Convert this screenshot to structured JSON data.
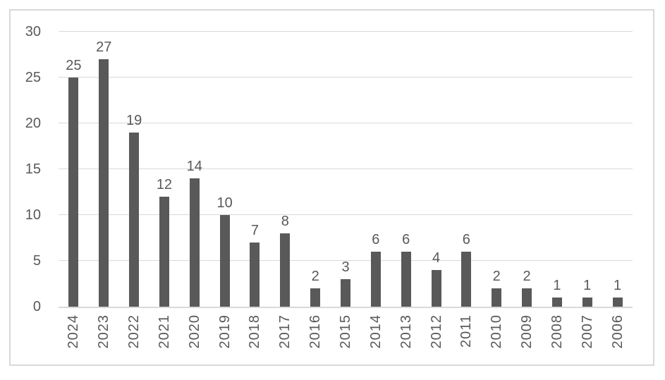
{
  "chart_data": {
    "type": "bar",
    "categories": [
      "2024",
      "2023",
      "2022",
      "2021",
      "2020",
      "2019",
      "2018",
      "2017",
      "2016",
      "2015",
      "2014",
      "2013",
      "2012",
      "2011",
      "2010",
      "2009",
      "2008",
      "2007",
      "2006"
    ],
    "values": [
      25,
      27,
      19,
      12,
      14,
      10,
      7,
      8,
      2,
      3,
      6,
      6,
      4,
      6,
      2,
      2,
      1,
      1,
      1
    ],
    "yticks": [
      0,
      5,
      10,
      15,
      20,
      25,
      30
    ],
    "ylim": [
      0,
      30
    ],
    "grid": true,
    "legend": false,
    "data_labels_shown": true,
    "x_labels_rotated_degrees": 90,
    "colors": {
      "bar": "#595959",
      "gridline": "#d9d9d9",
      "frame_border": "#d9d9d9",
      "axis_text": "#595959",
      "data_label_text": "#595959",
      "background": "#ffffff"
    }
  }
}
